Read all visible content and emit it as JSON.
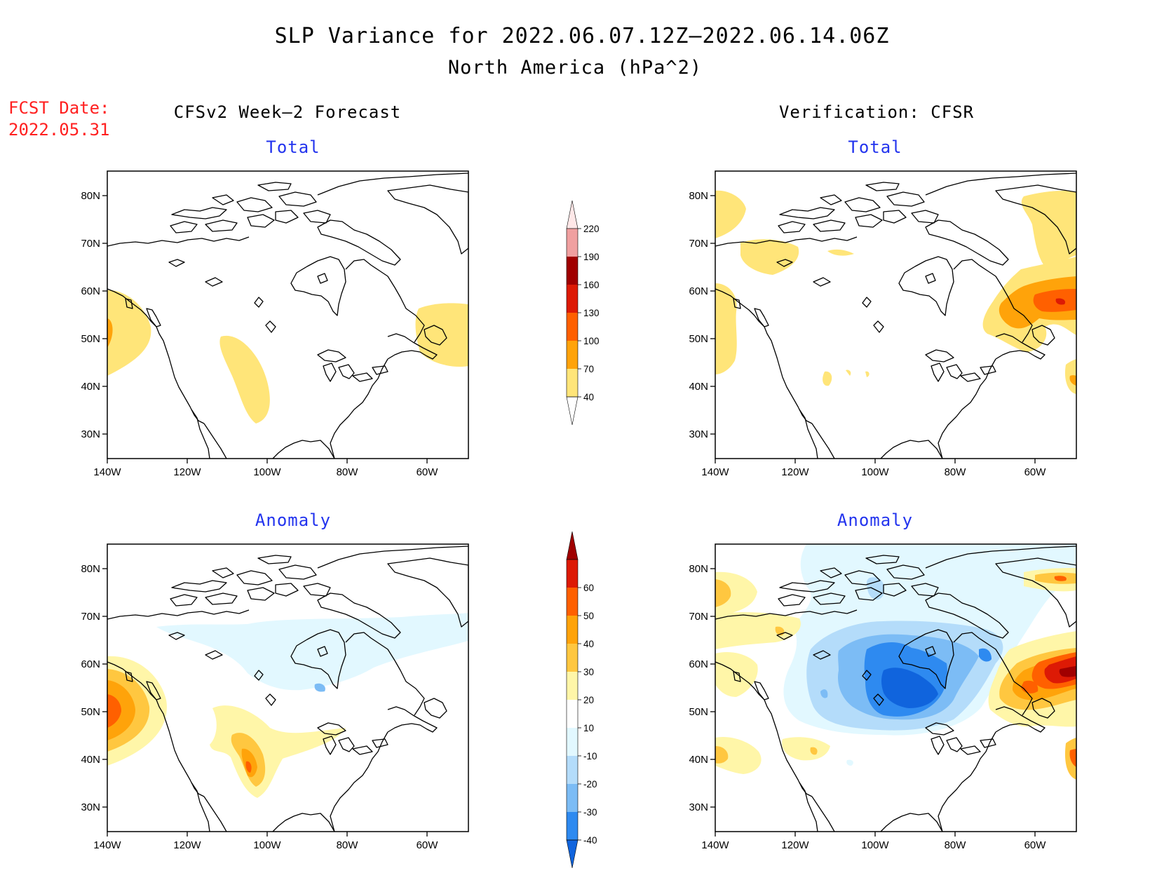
{
  "title": {
    "line1": "SLP Variance for 2022.06.07.12Z–2022.06.14.06Z",
    "line2": "North America (hPa^2)"
  },
  "forecast_date": {
    "label": "FCST Date:",
    "value": "2022.05.31"
  },
  "columns": {
    "left": "CFSv2 Week–2 Forecast",
    "right": "Verification: CFSR"
  },
  "panel_titles": {
    "total": "Total",
    "anomaly": "Anomaly"
  },
  "axes": {
    "lon_labels": [
      "140W",
      "120W",
      "100W",
      "80W",
      "60W"
    ],
    "lat_labels": [
      "80N",
      "70N",
      "60N",
      "50N",
      "40N",
      "30N"
    ]
  },
  "colorbars": {
    "total": {
      "levels": [
        "40",
        "70",
        "100",
        "130",
        "160",
        "190",
        "220"
      ],
      "colors": [
        "#ffffff",
        "#ffe579",
        "#ffa30a",
        "#ff6000",
        "#dd1a05",
        "#a00000",
        "#f0a0a0",
        "#ffe8e8"
      ]
    },
    "anomaly": {
      "levels": [
        "-40",
        "-30",
        "-20",
        "-10",
        "10",
        "20",
        "30",
        "40",
        "50",
        "60"
      ],
      "colors": [
        "#1064dd",
        "#2e8af0",
        "#7cbcf5",
        "#b4dcfa",
        "#e2f8ff",
        "#ffffff",
        "#fff6a8",
        "#ffc740",
        "#ffa30a",
        "#ff6000",
        "#dd1a05",
        "#a00000"
      ]
    }
  },
  "map_data": {
    "region": "North America",
    "lon_range": [
      "140W",
      "50W"
    ],
    "lat_range": [
      "25N",
      "85N"
    ],
    "panels": [
      {
        "id": "forecast-total",
        "features": [
          "moderate variance (40-70) off Pacific Northwest coast",
          "moderate variance (40-70) over central Great Plains",
          "moderate variance (40-70) over Gulf of St. Lawrence / Newfoundland"
        ]
      },
      {
        "id": "forecast-anomaly",
        "features": [
          "positive anomaly up to 40-50 off Pacific Northwest coast",
          "positive anomaly up to 40 over central Plains",
          "weak negative anomaly (-10 to -20) over Hudson Bay and Labrador"
        ]
      },
      {
        "id": "verification-total",
        "features": [
          "40-70 along Pacific coast and Gulf of Alaska",
          "up to 100-130 over Labrador / Newfoundland",
          "40-70 near Greenland"
        ]
      },
      {
        "id": "verification-anomaly",
        "features": [
          "strong negative anomaly (-30 to below -40) over Hudson Bay and northern Ontario/Quebec",
          "strong positive anomaly (50-60+) near Labrador Sea and Newfoundland",
          "weak positive anomalies along Pacific coast"
        ]
      }
    ]
  }
}
